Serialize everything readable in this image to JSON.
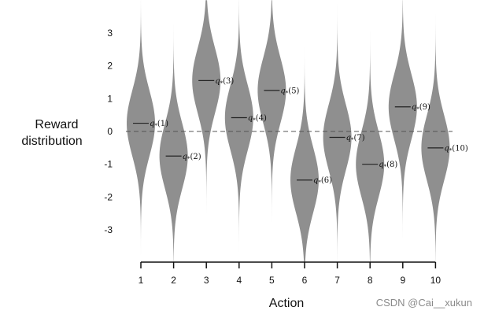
{
  "chart_data": {
    "type": "violin",
    "xlabel": "Action",
    "ylabel": [
      "Reward",
      "distribution"
    ],
    "categories": [
      "1",
      "2",
      "3",
      "4",
      "5",
      "6",
      "7",
      "8",
      "9",
      "10"
    ],
    "means": [
      0.25,
      -0.75,
      1.55,
      0.42,
      1.25,
      -1.48,
      -0.18,
      -1.0,
      0.75,
      -0.5
    ],
    "mean_labels": [
      {
        "base": "q",
        "sub": "*",
        "arg": "(1)"
      },
      {
        "base": "q",
        "sub": "*",
        "arg": "(2)"
      },
      {
        "base": "q",
        "sub": "*",
        "arg": "(3)"
      },
      {
        "base": "q",
        "sub": "*",
        "arg": "(4)"
      },
      {
        "base": "q",
        "sub": "*",
        "arg": "(5)"
      },
      {
        "base": "q",
        "sub": "*",
        "arg": "(6)"
      },
      {
        "base": "q",
        "sub": "*",
        "arg": "(7)"
      },
      {
        "base": "q",
        "sub": "*",
        "arg": "(8)"
      },
      {
        "base": "q",
        "sub": "*",
        "arg": "(9)"
      },
      {
        "base": "q",
        "sub": "*",
        "arg": "(10)"
      }
    ],
    "std": 1.0,
    "yticks": [
      -3,
      -2,
      -1,
      0,
      1,
      2,
      3
    ],
    "ylim": [
      -4,
      4
    ],
    "zero_line": "dashed",
    "violin_color": "#8f8f8f",
    "grid": false
  },
  "watermark": "CSDN @Cai__xukun"
}
